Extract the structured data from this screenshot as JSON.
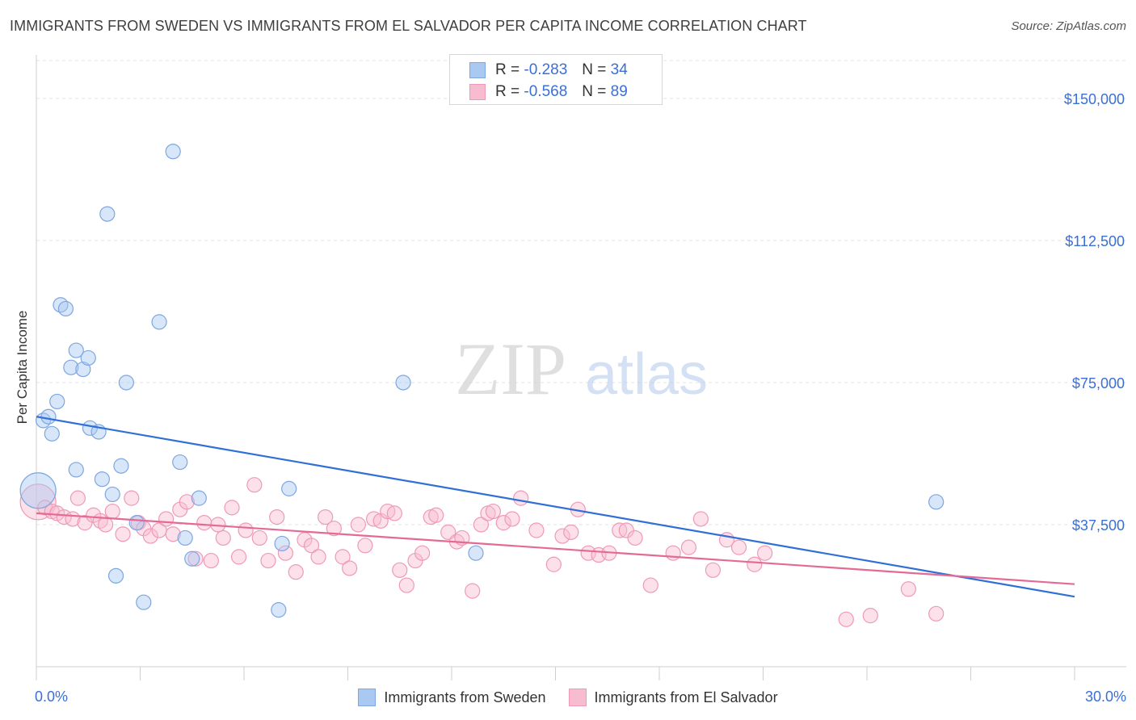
{
  "header": {
    "title": "IMMIGRANTS FROM SWEDEN VS IMMIGRANTS FROM EL SALVADOR PER CAPITA INCOME CORRELATION CHART",
    "source": "Source: ZipAtlas.com"
  },
  "watermark": {
    "zip": "ZIP",
    "atlas": "atlas"
  },
  "legend": {
    "sweden": {
      "r_label": "R =",
      "r_value": "-0.283",
      "n_label": "N =",
      "n_value": "34"
    },
    "elsalvador": {
      "r_label": "R =",
      "r_value": "-0.568",
      "n_label": "N =",
      "n_value": "89"
    }
  },
  "bottom_legend": {
    "sweden": "Immigrants from Sweden",
    "elsalvador": "Immigrants from El Salvador"
  },
  "colors": {
    "sweden_fill": "#a9c8f2",
    "sweden_stroke": "#7ea6e0",
    "sweden_line": "#2f6fd6",
    "elsalvador_fill": "#f8bcd0",
    "elsalvador_stroke": "#ee9ab6",
    "elsalvador_line": "#e36a95",
    "axis_text": "#3a6fd8",
    "grid": "#e3e3e3"
  },
  "chart_data": {
    "type": "scatter",
    "title": "IMMIGRANTS FROM SWEDEN VS IMMIGRANTS FROM EL SALVADOR PER CAPITA INCOME CORRELATION CHART",
    "xlabel": "",
    "ylabel": "Per Capita Income",
    "xlim": [
      0,
      30
    ],
    "ylim": [
      0,
      160000
    ],
    "x_tick_labels": [
      "0.0%",
      "30.0%"
    ],
    "y_ticks": [
      37500,
      75000,
      112500,
      150000
    ],
    "y_tick_labels": [
      "$37,500",
      "$75,000",
      "$112,500",
      "$150,000"
    ],
    "grid": true,
    "series": [
      {
        "name": "Immigrants from Sweden",
        "r": -0.283,
        "n": 34,
        "trend": {
          "x": [
            0,
            30
          ],
          "y": [
            66000,
            18500
          ]
        },
        "points": [
          [
            0.05,
            46500,
            "large"
          ],
          [
            0.2,
            65000
          ],
          [
            0.35,
            66000
          ],
          [
            0.45,
            61500
          ],
          [
            0.6,
            70000
          ],
          [
            0.7,
            95500
          ],
          [
            0.85,
            94500
          ],
          [
            1.0,
            79000
          ],
          [
            1.15,
            83500
          ],
          [
            1.35,
            78500
          ],
          [
            1.5,
            81500
          ],
          [
            1.55,
            63000
          ],
          [
            1.8,
            62000
          ],
          [
            1.15,
            52000
          ],
          [
            1.9,
            49500
          ],
          [
            2.2,
            45500
          ],
          [
            2.05,
            119500
          ],
          [
            2.3,
            24000
          ],
          [
            2.45,
            53000
          ],
          [
            2.6,
            75000
          ],
          [
            2.9,
            38000
          ],
          [
            3.1,
            17000
          ],
          [
            3.55,
            91000
          ],
          [
            3.95,
            136000
          ],
          [
            4.15,
            54000
          ],
          [
            4.3,
            34000
          ],
          [
            4.5,
            28500
          ],
          [
            4.7,
            44500
          ],
          [
            7.0,
            15000
          ],
          [
            7.1,
            32500
          ],
          [
            7.3,
            47000
          ],
          [
            10.6,
            75000
          ],
          [
            12.7,
            30000
          ],
          [
            26.0,
            43500
          ]
        ]
      },
      {
        "name": "Immigrants from El Salvador",
        "r": -0.568,
        "n": 89,
        "trend": {
          "x": [
            0,
            30
          ],
          "y": [
            40500,
            21800
          ]
        },
        "points": [
          [
            0.05,
            43500,
            "large"
          ],
          [
            0.25,
            42000
          ],
          [
            0.45,
            41000
          ],
          [
            0.6,
            40500
          ],
          [
            0.8,
            39500
          ],
          [
            1.05,
            39000
          ],
          [
            1.2,
            44500
          ],
          [
            1.4,
            38000
          ],
          [
            1.65,
            40000
          ],
          [
            1.85,
            38500
          ],
          [
            2.0,
            37500
          ],
          [
            2.2,
            41000
          ],
          [
            2.5,
            35000
          ],
          [
            2.75,
            44500
          ],
          [
            2.95,
            38000
          ],
          [
            3.1,
            36500
          ],
          [
            3.3,
            34500
          ],
          [
            3.55,
            36000
          ],
          [
            3.75,
            39000
          ],
          [
            3.95,
            35000
          ],
          [
            4.15,
            41500
          ],
          [
            4.35,
            43500
          ],
          [
            4.6,
            28500
          ],
          [
            4.85,
            38000
          ],
          [
            5.05,
            28000
          ],
          [
            5.25,
            37500
          ],
          [
            5.4,
            34000
          ],
          [
            5.65,
            42000
          ],
          [
            5.85,
            29000
          ],
          [
            6.05,
            36000
          ],
          [
            6.3,
            48000
          ],
          [
            6.45,
            34000
          ],
          [
            6.7,
            28000
          ],
          [
            6.95,
            39500
          ],
          [
            7.2,
            30000
          ],
          [
            7.5,
            25000
          ],
          [
            7.75,
            33500
          ],
          [
            7.95,
            32000
          ],
          [
            8.15,
            29000
          ],
          [
            8.35,
            39500
          ],
          [
            8.6,
            36500
          ],
          [
            8.85,
            29000
          ],
          [
            9.05,
            26000
          ],
          [
            9.3,
            37500
          ],
          [
            9.5,
            32000
          ],
          [
            9.75,
            39000
          ],
          [
            9.95,
            38500
          ],
          [
            10.15,
            41000
          ],
          [
            10.35,
            40500
          ],
          [
            10.5,
            25500
          ],
          [
            10.7,
            21500
          ],
          [
            10.95,
            28000
          ],
          [
            11.15,
            30000
          ],
          [
            11.4,
            39500
          ],
          [
            11.55,
            40000
          ],
          [
            11.9,
            35500
          ],
          [
            12.15,
            33000
          ],
          [
            12.3,
            34000
          ],
          [
            12.6,
            20000
          ],
          [
            12.85,
            37500
          ],
          [
            13.05,
            40500
          ],
          [
            13.2,
            41000
          ],
          [
            13.5,
            38000
          ],
          [
            13.75,
            39000
          ],
          [
            14.0,
            44500
          ],
          [
            14.45,
            36000
          ],
          [
            14.95,
            27000
          ],
          [
            15.2,
            34500
          ],
          [
            15.45,
            35500
          ],
          [
            15.65,
            41500
          ],
          [
            15.95,
            30000
          ],
          [
            16.25,
            29500
          ],
          [
            16.55,
            30000
          ],
          [
            16.85,
            36000
          ],
          [
            17.05,
            36000
          ],
          [
            17.3,
            34000
          ],
          [
            17.75,
            21500
          ],
          [
            18.4,
            30000
          ],
          [
            18.85,
            31500
          ],
          [
            19.2,
            39000
          ],
          [
            19.55,
            25500
          ],
          [
            19.95,
            33500
          ],
          [
            20.3,
            31500
          ],
          [
            20.75,
            27000
          ],
          [
            21.05,
            30000
          ],
          [
            23.4,
            12500
          ],
          [
            24.1,
            13500
          ],
          [
            25.2,
            20500
          ],
          [
            26.0,
            14000
          ]
        ]
      }
    ]
  }
}
